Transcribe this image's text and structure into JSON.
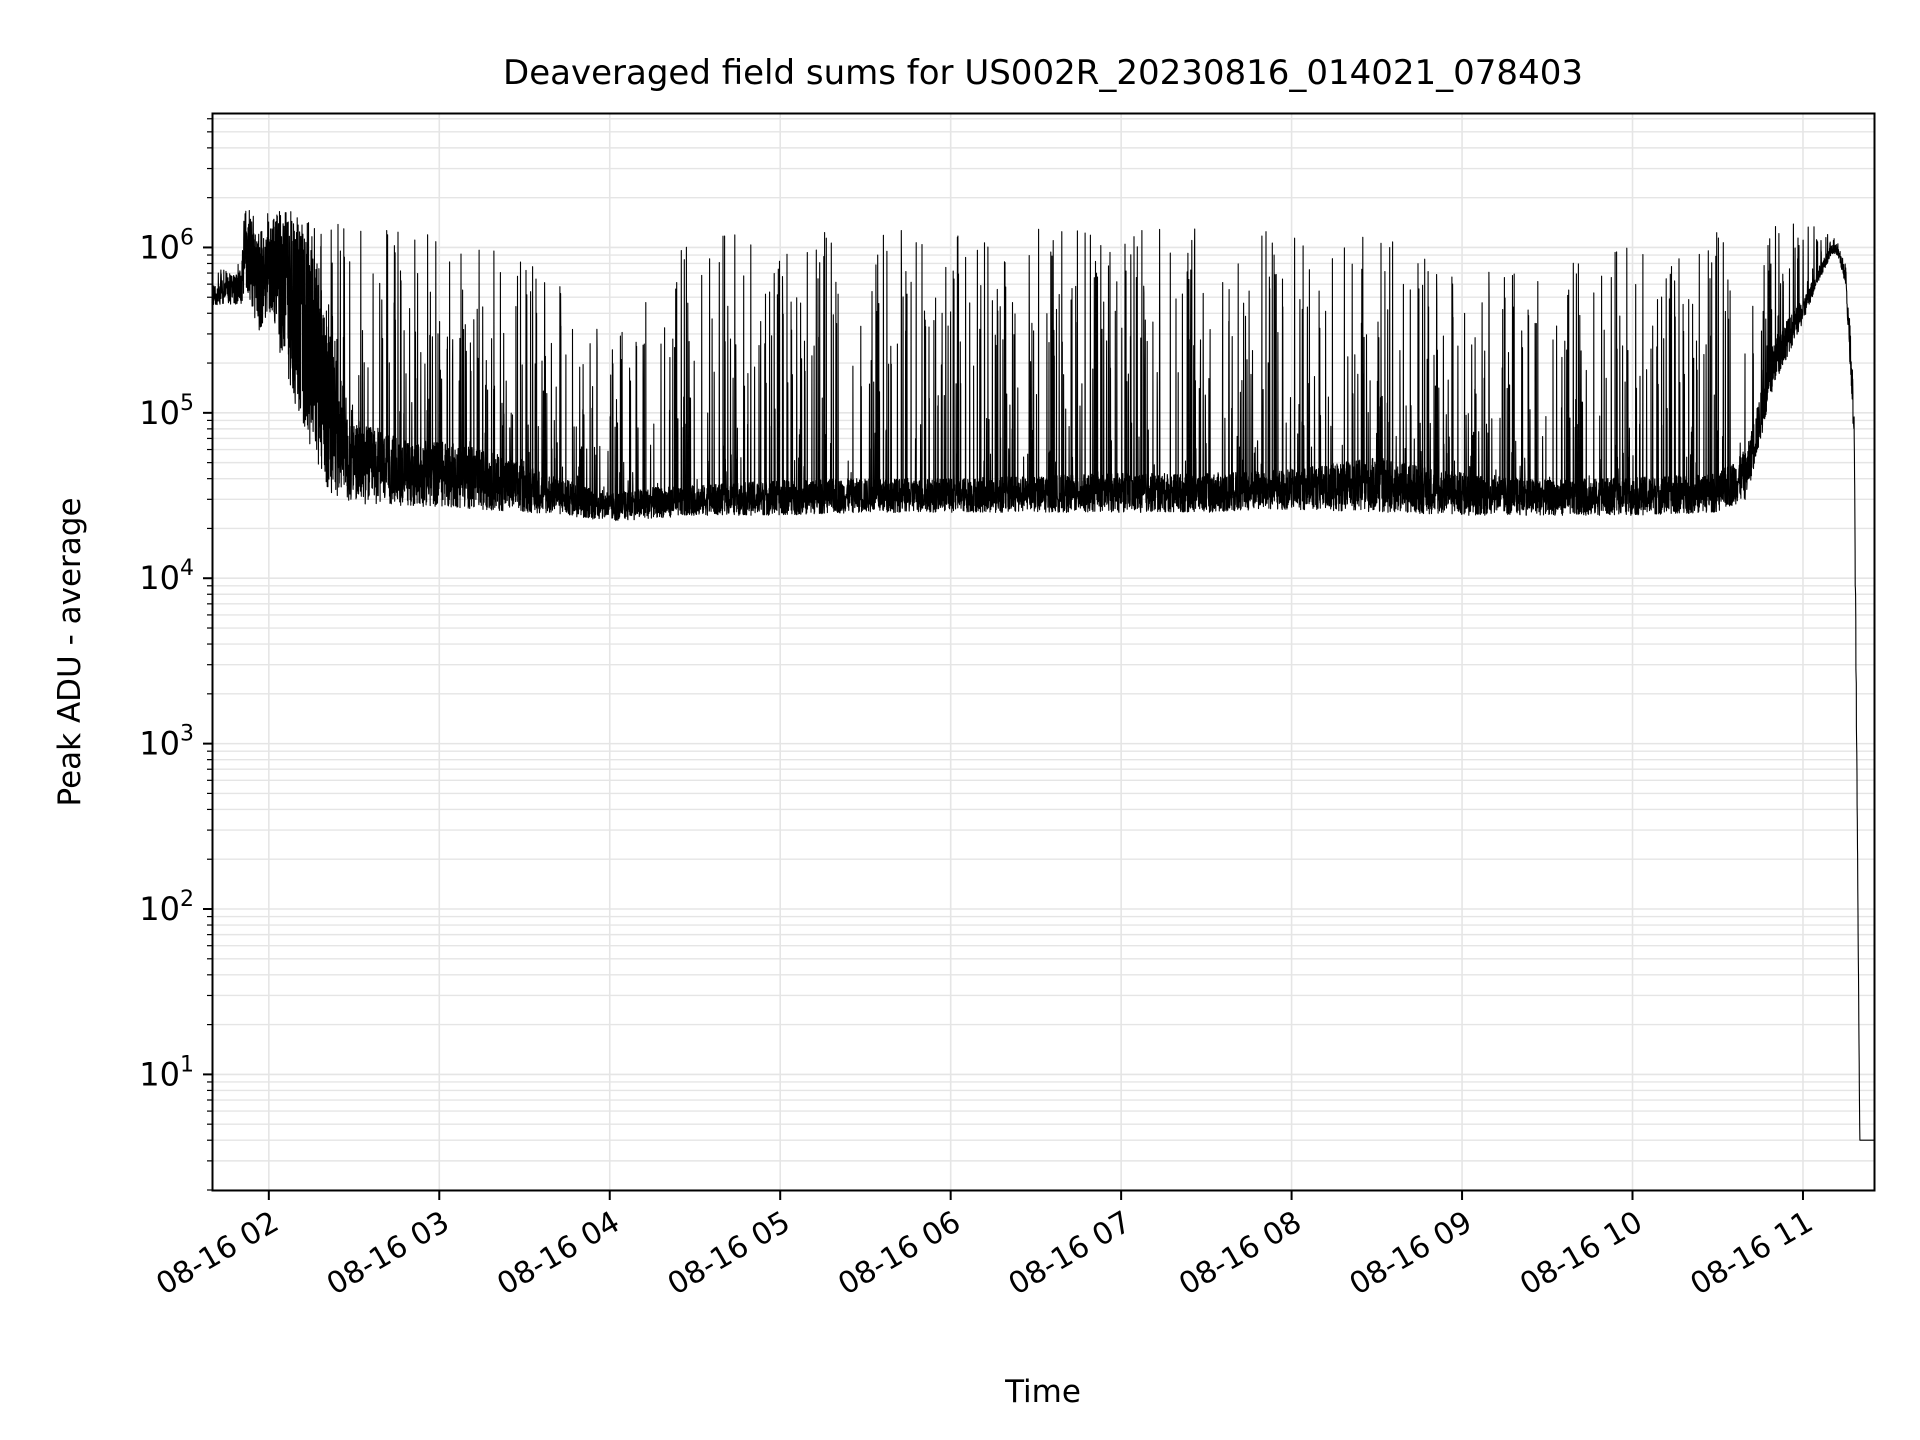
{
  "chart_data": {
    "type": "line",
    "title": "Deaveraged field sums for US002R_20230816_014021_078403",
    "xlabel": "Time",
    "ylabel": "Peak ADU - average",
    "y_scale": "log",
    "xlim": [
      "08-16 01:40",
      "08-16 11:25"
    ],
    "ylim": [
      2,
      6500000
    ],
    "x_tick_labels": [
      "08-16 02",
      "08-16 03",
      "08-16 04",
      "08-16 05",
      "08-16 06",
      "08-16 07",
      "08-16 08",
      "08-16 09",
      "08-16 10",
      "08-16 11"
    ],
    "y_ticks": [
      {
        "base": "10",
        "exp": "1",
        "value": 10
      },
      {
        "base": "10",
        "exp": "2",
        "value": 100
      },
      {
        "base": "10",
        "exp": "3",
        "value": 1000
      },
      {
        "base": "10",
        "exp": "4",
        "value": 10000
      },
      {
        "base": "10",
        "exp": "5",
        "value": 100000
      },
      {
        "base": "10",
        "exp": "6",
        "value": 1000000
      }
    ],
    "grid": true,
    "line_color": "#000000",
    "grid_color": "#e5e5e5",
    "series": [
      {
        "name": "",
        "x": [
          "08-16 01:40",
          "08-16 01:45",
          "08-16 01:50",
          "08-16 01:53",
          "08-16 01:56",
          "08-16 02:00",
          "08-16 02:05",
          "08-16 02:10",
          "08-16 02:15",
          "08-16 02:20",
          "08-16 02:25",
          "08-16 02:30",
          "08-16 02:40",
          "08-16 02:50",
          "08-16 03:00",
          "08-16 03:15",
          "08-16 03:30",
          "08-16 03:45",
          "08-16 04:00",
          "08-16 04:15",
          "08-16 04:30",
          "08-16 04:45",
          "08-16 05:00",
          "08-16 05:30",
          "08-16 06:00",
          "08-16 06:30",
          "08-16 07:00",
          "08-16 07:30",
          "08-16 08:00",
          "08-16 08:30",
          "08-16 09:00",
          "08-16 09:30",
          "08-16 10:00",
          "08-16 10:30",
          "08-16 10:40",
          "08-16 10:50",
          "08-16 11:00",
          "08-16 11:05",
          "08-16 11:10",
          "08-16 11:12",
          "08-16 11:15",
          "08-16 11:18",
          "08-16 11:20",
          "08-16 11:25"
        ],
        "y": [
          550000,
          600000,
          650000,
          1300000,
          800000,
          1000000,
          1100000,
          900000,
          500000,
          250000,
          120000,
          70000,
          60000,
          55000,
          55000,
          50000,
          42000,
          35000,
          30000,
          32000,
          33000,
          34000,
          35000,
          36000,
          36000,
          37000,
          38000,
          38000,
          40000,
          45000,
          38000,
          35000,
          36000,
          38000,
          50000,
          250000,
          450000,
          700000,
          1000000,
          1000000,
          700000,
          100000,
          4,
          4
        ],
        "upper": [
          650000,
          800000,
          1000000,
          2500000,
          1200000,
          1700000,
          1700000,
          1600000,
          1500000,
          1400000,
          1400000,
          1350000,
          1300000,
          1300000,
          1300000,
          1200000,
          900000,
          700000,
          250000,
          600000,
          1200000,
          1300000,
          1300000,
          1300000,
          1300000,
          1300000,
          1300000,
          1300000,
          1300000,
          1200000,
          800000,
          700000,
          1100000,
          1300000,
          1300000,
          1400000,
          1400000,
          1400000,
          1300000,
          1100000,
          800000,
          150000,
          4,
          4
        ],
        "lower": [
          450000,
          450000,
          450000,
          500000,
          300000,
          400000,
          200000,
          100000,
          60000,
          35000,
          30000,
          28000,
          28000,
          27000,
          27000,
          26000,
          25000,
          24000,
          22000,
          23000,
          24000,
          24000,
          24000,
          25000,
          25000,
          25000,
          25000,
          25000,
          26000,
          25000,
          24000,
          24000,
          24000,
          25000,
          30000,
          150000,
          350000,
          600000,
          900000,
          900000,
          600000,
          60000,
          4,
          4
        ]
      }
    ]
  }
}
